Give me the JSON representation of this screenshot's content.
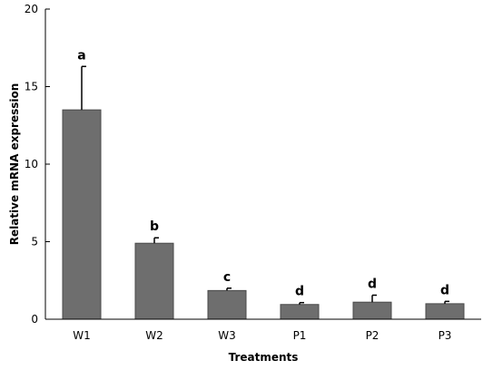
{
  "chart_data": {
    "type": "bar",
    "title": "",
    "xlabel": "Treatments",
    "ylabel": "Relative mRNA expression",
    "categories": [
      "W1",
      "W2",
      "W3",
      "P1",
      "P2",
      "P3"
    ],
    "values": [
      13.5,
      4.9,
      1.85,
      0.95,
      1.1,
      1.0
    ],
    "errors": [
      2.8,
      0.35,
      0.15,
      0.12,
      0.45,
      0.15
    ],
    "significance_labels": [
      "a",
      "b",
      "c",
      "d",
      "d",
      "d"
    ],
    "ylim": [
      0,
      20
    ],
    "yticks": [
      0,
      5,
      10,
      15,
      20
    ],
    "grid": false,
    "bar_color": "#6e6e6e",
    "error_bar_color": "#000000"
  }
}
